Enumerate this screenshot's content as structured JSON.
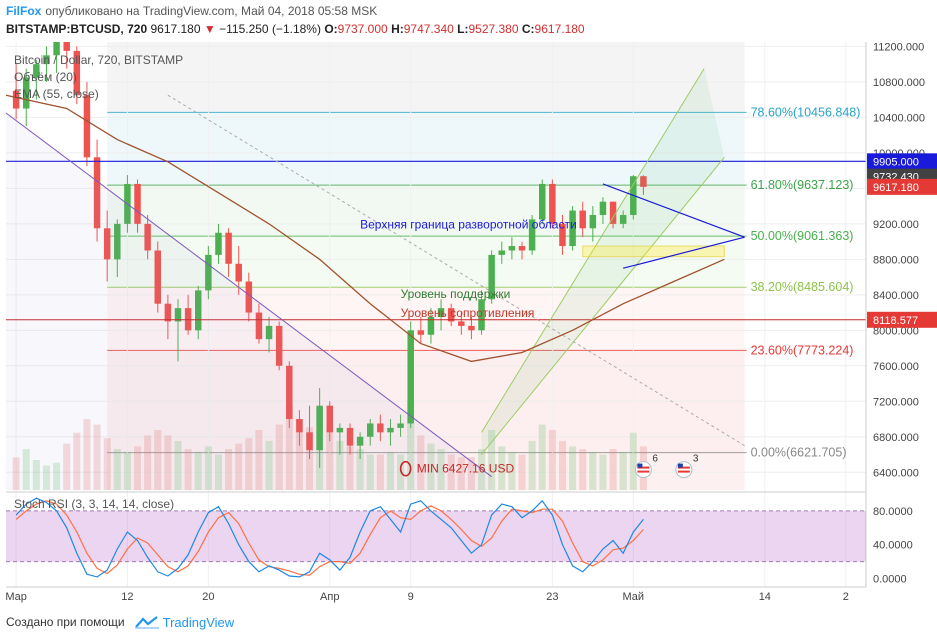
{
  "header": {
    "brand": "FilFox",
    "published": "опубликовано на TradingView.com, Май 04, 2018 05:58 MSK",
    "symbol": "BITSTAMP:BTCUSD, 720",
    "last": "9617.180",
    "change": "−115.250 (−1.18%)",
    "o_label": "O:",
    "o_value": "9737.000",
    "h_label": "H:",
    "h_value": "9747.340",
    "l_label": "L:",
    "l_value": "9527.380",
    "c_label": "C:",
    "c_value": "9617.180"
  },
  "footer": {
    "created_with": "Создано при помощи",
    "brand": "TradingView"
  },
  "chart_data": {
    "type": "candlestick",
    "legend": [
      "Bitcoin / Dollar, 720, BITSTAMP",
      "Объём (20)",
      "EMA (55, close)"
    ],
    "price_axis": {
      "ticks": [
        6400,
        6800,
        7200,
        7600,
        8000,
        8400,
        8800,
        9200,
        9600,
        10000,
        10400,
        10800,
        11200
      ],
      "tick_labels": [
        "6400.000",
        "6800.000",
        "7200.000",
        "7600.000",
        "8000.000",
        "8400.000",
        "8800.000",
        "9200.000",
        "9600.000",
        "10000.000",
        "10400.000",
        "10800.000",
        "11200.000"
      ],
      "ylim": [
        6200,
        11250
      ]
    },
    "price_badges": [
      {
        "label": "9905.000",
        "value": 9905,
        "color": "#1a1adb"
      },
      {
        "label": "9732.430",
        "value": 9732.43,
        "color": "#424242"
      },
      {
        "label": "9617.180",
        "value": 9617.18,
        "color": "#e53935"
      },
      {
        "label": "8118.577",
        "value": 8118.577,
        "color": "#e53935"
      }
    ],
    "time_axis": {
      "labels": [
        "Мар",
        "12",
        "20",
        "Апр",
        "9",
        "23",
        "Май",
        "14",
        "2"
      ],
      "day_index": [
        0,
        11,
        19,
        31,
        39,
        53,
        61,
        74,
        82
      ],
      "xlim": [
        -1,
        84
      ]
    },
    "fibonacci": [
      {
        "label": "78.60%(10456.848)",
        "value": 10456.848,
        "color": "#29a3c7",
        "zone": "rgba(41,163,199,0.08)"
      },
      {
        "label": "61.80%(9637.123)",
        "value": 9637.123,
        "color": "#3ba34a",
        "zone": "rgba(59,163,74,0.07)"
      },
      {
        "label": "50.00%(9061.363)",
        "value": 9061.363,
        "color": "#47b04d",
        "zone": "rgba(120,200,90,0.08)"
      },
      {
        "label": "38.20%(8485.604)",
        "value": 8485.604,
        "color": "#8bc34a",
        "zone": "rgba(255,160,160,0.10)"
      },
      {
        "label": "23.60%(7773.224)",
        "value": 7773.224,
        "color": "#e53935",
        "zone": "rgba(240,120,120,0.12)"
      },
      {
        "label": "0.00%(6621.705)",
        "value": 6621.705,
        "color": "#888888",
        "zone": ""
      }
    ],
    "annotations": [
      {
        "text": "Верхняя граница разворотной области",
        "color": "#1a1adb"
      },
      {
        "text": "Уровень поддержки",
        "color": "#2e7d32"
      },
      {
        "text": "Уровень сопротивления",
        "color": "#c0392b"
      },
      {
        "text": "MIN 6427.16 USD",
        "color": "#c62828"
      }
    ],
    "event_flags": [
      {
        "label": "6"
      },
      {
        "label": "3"
      }
    ],
    "lines": {
      "support_resistance": 8118.577,
      "reversal_top": 9905,
      "ema55": [
        [
          -1,
          10650
        ],
        [
          5,
          10500
        ],
        [
          10,
          10150
        ],
        [
          15,
          9900
        ],
        [
          20,
          9550
        ],
        [
          25,
          9200
        ],
        [
          30,
          8800
        ],
        [
          35,
          8300
        ],
        [
          40,
          7850
        ],
        [
          45,
          7650
        ],
        [
          50,
          7750
        ],
        [
          55,
          8000
        ],
        [
          60,
          8300
        ],
        [
          65,
          8550
        ],
        [
          70,
          8800
        ]
      ],
      "triangle_upper": [
        [
          58,
          9650
        ],
        [
          72,
          9050
        ]
      ],
      "triangle_lower": [
        [
          60,
          8700
        ],
        [
          72,
          9050
        ]
      ],
      "channel_upper": [
        [
          46,
          6850
        ],
        [
          68,
          10950
        ]
      ],
      "channel_lower": [
        [
          46,
          6600
        ],
        [
          70,
          9950
        ]
      ],
      "down_trend": [
        [
          -1,
          10450
        ],
        [
          47,
          6350
        ]
      ],
      "dotted_trend": [
        [
          15,
          10650
        ],
        [
          72,
          6700
        ]
      ],
      "support_box": [
        56,
        70,
        8830,
        8950
      ]
    },
    "candles": [
      {
        "o": 10700,
        "h": 11000,
        "l": 10380,
        "c": 10500
      },
      {
        "o": 10500,
        "h": 10950,
        "l": 10300,
        "c": 10850
      },
      {
        "o": 10850,
        "h": 11050,
        "l": 10600,
        "c": 11000
      },
      {
        "o": 11000,
        "h": 11200,
        "l": 10800,
        "c": 11100
      },
      {
        "o": 11100,
        "h": 11250,
        "l": 10900,
        "c": 11250
      },
      {
        "o": 11250,
        "h": 11250,
        "l": 10950,
        "c": 11150
      },
      {
        "o": 11150,
        "h": 11200,
        "l": 10550,
        "c": 10650
      },
      {
        "o": 10650,
        "h": 10800,
        "l": 9850,
        "c": 9950
      },
      {
        "o": 9950,
        "h": 10150,
        "l": 9000,
        "c": 9150
      },
      {
        "o": 9150,
        "h": 9350,
        "l": 8550,
        "c": 8800
      },
      {
        "o": 8800,
        "h": 9250,
        "l": 8600,
        "c": 9200
      },
      {
        "o": 9200,
        "h": 9750,
        "l": 9100,
        "c": 9650
      },
      {
        "o": 9650,
        "h": 9700,
        "l": 9100,
        "c": 9200
      },
      {
        "o": 9200,
        "h": 9300,
        "l": 8800,
        "c": 8900
      },
      {
        "o": 8900,
        "h": 9000,
        "l": 8200,
        "c": 8300
      },
      {
        "o": 8300,
        "h": 8400,
        "l": 7900,
        "c": 8100
      },
      {
        "o": 8100,
        "h": 8350,
        "l": 7650,
        "c": 8250
      },
      {
        "o": 8250,
        "h": 8400,
        "l": 7950,
        "c": 8000
      },
      {
        "o": 8000,
        "h": 8500,
        "l": 7900,
        "c": 8450
      },
      {
        "o": 8450,
        "h": 8950,
        "l": 8350,
        "c": 8850
      },
      {
        "o": 8850,
        "h": 9200,
        "l": 8750,
        "c": 9100
      },
      {
        "o": 9100,
        "h": 9150,
        "l": 8600,
        "c": 8750
      },
      {
        "o": 8750,
        "h": 8950,
        "l": 8400,
        "c": 8550
      },
      {
        "o": 8550,
        "h": 8650,
        "l": 8100,
        "c": 8200
      },
      {
        "o": 8200,
        "h": 8300,
        "l": 7850,
        "c": 7900
      },
      {
        "o": 7900,
        "h": 8150,
        "l": 7750,
        "c": 8050
      },
      {
        "o": 8050,
        "h": 8100,
        "l": 7550,
        "c": 7600
      },
      {
        "o": 7600,
        "h": 7650,
        "l": 6900,
        "c": 7000
      },
      {
        "o": 7000,
        "h": 7100,
        "l": 6700,
        "c": 6850
      },
      {
        "o": 6850,
        "h": 7150,
        "l": 6550,
        "c": 6650
      },
      {
        "o": 6650,
        "h": 7350,
        "l": 6450,
        "c": 7150
      },
      {
        "o": 7150,
        "h": 7200,
        "l": 6750,
        "c": 6850
      },
      {
        "o": 6850,
        "h": 6950,
        "l": 6600,
        "c": 6900
      },
      {
        "o": 6900,
        "h": 6950,
        "l": 6600,
        "c": 6700
      },
      {
        "o": 6700,
        "h": 6850,
        "l": 6550,
        "c": 6800
      },
      {
        "o": 6800,
        "h": 7000,
        "l": 6700,
        "c": 6950
      },
      {
        "o": 6950,
        "h": 7050,
        "l": 6750,
        "c": 6850
      },
      {
        "o": 6850,
        "h": 7000,
        "l": 6700,
        "c": 6900
      },
      {
        "o": 6900,
        "h": 7050,
        "l": 6800,
        "c": 6950
      },
      {
        "o": 6950,
        "h": 8100,
        "l": 6900,
        "c": 8000
      },
      {
        "o": 8000,
        "h": 8150,
        "l": 7850,
        "c": 7950
      },
      {
        "o": 7950,
        "h": 8250,
        "l": 7850,
        "c": 8150
      },
      {
        "o": 8150,
        "h": 8350,
        "l": 8000,
        "c": 8250
      },
      {
        "o": 8250,
        "h": 8300,
        "l": 8050,
        "c": 8100
      },
      {
        "o": 8100,
        "h": 8200,
        "l": 7950,
        "c": 8050
      },
      {
        "o": 8050,
        "h": 8150,
        "l": 7900,
        "c": 8000
      },
      {
        "o": 8000,
        "h": 8450,
        "l": 7950,
        "c": 8350
      },
      {
        "o": 8350,
        "h": 8900,
        "l": 8300,
        "c": 8850
      },
      {
        "o": 8850,
        "h": 9000,
        "l": 8750,
        "c": 8900
      },
      {
        "o": 8900,
        "h": 9050,
        "l": 8800,
        "c": 8950
      },
      {
        "o": 8950,
        "h": 9000,
        "l": 8800,
        "c": 8900
      },
      {
        "o": 8900,
        "h": 9300,
        "l": 8850,
        "c": 9250
      },
      {
        "o": 9250,
        "h": 9700,
        "l": 9200,
        "c": 9650
      },
      {
        "o": 9650,
        "h": 9700,
        "l": 9150,
        "c": 9200
      },
      {
        "o": 9200,
        "h": 9300,
        "l": 8850,
        "c": 8950
      },
      {
        "o": 8950,
        "h": 9400,
        "l": 8900,
        "c": 9350
      },
      {
        "o": 9350,
        "h": 9450,
        "l": 9050,
        "c": 9150
      },
      {
        "o": 9150,
        "h": 9400,
        "l": 9000,
        "c": 9300
      },
      {
        "o": 9300,
        "h": 9500,
        "l": 9200,
        "c": 9450
      },
      {
        "o": 9450,
        "h": 9450,
        "l": 9150,
        "c": 9200
      },
      {
        "o": 9200,
        "h": 9350,
        "l": 9150,
        "c": 9300
      },
      {
        "o": 9300,
        "h": 9750,
        "l": 9250,
        "c": 9737
      },
      {
        "o": 9737,
        "h": 9747.34,
        "l": 9527.38,
        "c": 9617.18
      }
    ],
    "volume": [
      1200,
      1500,
      1100,
      900,
      1000,
      1700,
      2100,
      2600,
      2400,
      1900,
      1500,
      1400,
      1600,
      2000,
      2200,
      2000,
      1800,
      1500,
      1400,
      1600,
      1300,
      1500,
      1700,
      1900,
      2200,
      1800,
      2400,
      3100,
      2600,
      2300,
      3000,
      2200,
      1800,
      1600,
      1500,
      1300,
      1300,
      1400,
      1300,
      3300,
      2000,
      1700,
      1500,
      1300,
      1200,
      1200,
      1500,
      2200,
      1600,
      1400,
      1300,
      1800,
      2400,
      2200,
      1800,
      1600,
      1500,
      1400,
      1300,
      1500,
      1400,
      2100,
      1600
    ],
    "stoch_rsi": {
      "label": "Stoch RSI (3, 3, 14, 14, close)",
      "ticks": [
        0,
        40,
        80
      ],
      "tick_labels": [
        "0.0000",
        "40.0000",
        "80.0000"
      ],
      "ylim": [
        -10,
        100
      ],
      "band": [
        20,
        80
      ],
      "k": [
        75,
        88,
        95,
        90,
        80,
        60,
        30,
        5,
        2,
        10,
        35,
        55,
        45,
        25,
        8,
        3,
        12,
        28,
        55,
        78,
        85,
        65,
        40,
        20,
        8,
        15,
        10,
        3,
        2,
        8,
        30,
        22,
        10,
        25,
        55,
        80,
        85,
        70,
        55,
        88,
        92,
        80,
        70,
        60,
        45,
        30,
        40,
        75,
        88,
        85,
        72,
        80,
        92,
        75,
        40,
        15,
        8,
        20,
        35,
        45,
        30,
        55,
        70
      ],
      "d": [
        70,
        80,
        88,
        92,
        88,
        75,
        55,
        30,
        12,
        6,
        16,
        35,
        48,
        42,
        28,
        14,
        8,
        15,
        32,
        55,
        72,
        78,
        65,
        42,
        22,
        14,
        12,
        9,
        5,
        4,
        14,
        20,
        20,
        18,
        30,
        52,
        72,
        80,
        72,
        70,
        80,
        86,
        80,
        70,
        58,
        45,
        38,
        48,
        68,
        82,
        80,
        78,
        82,
        82,
        68,
        42,
        20,
        15,
        22,
        34,
        36,
        45,
        58
      ]
    }
  }
}
